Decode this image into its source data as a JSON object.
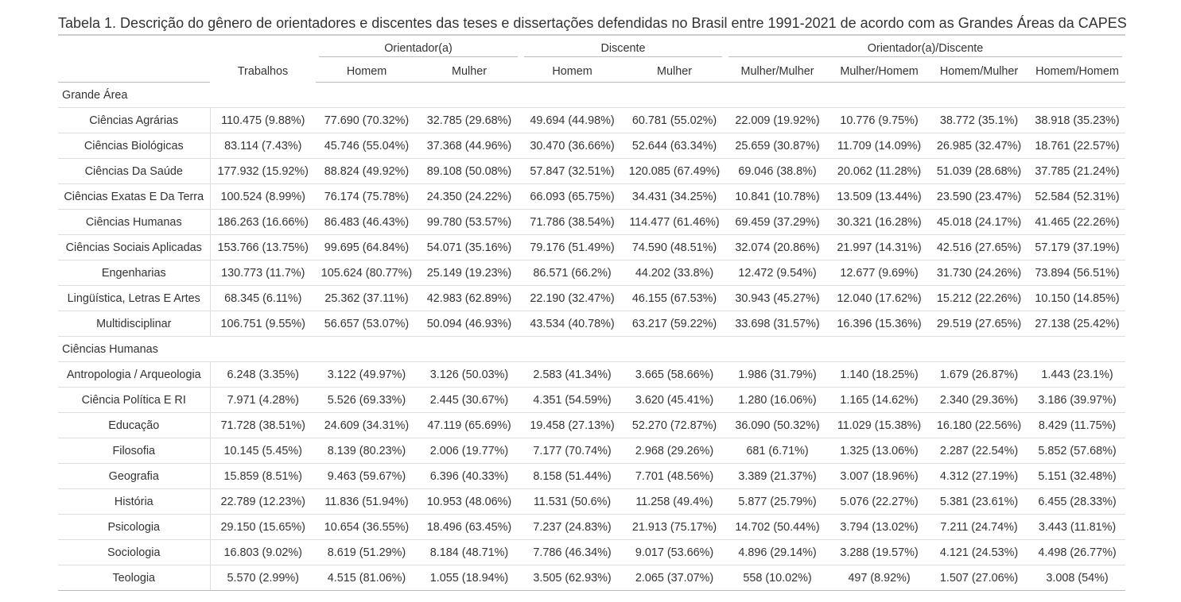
{
  "caption": "Tabela 1. Descrição do gênero de orientadores e discentes das teses e dissertações defendidas no Brasil entre 1991-2021 de acordo com as Grandes Áreas da CAPES",
  "header": {
    "groups": {
      "orientador": "Orientador(a)",
      "discente": "Discente",
      "orientador_discente": "Orientador(a)/Discente"
    },
    "columns": [
      "",
      "Trabalhos",
      "Homem",
      "Mulher",
      "Homem",
      "Mulher",
      "Mulher/Mulher",
      "Mulher/Homem",
      "Homem/Mulher",
      "Homem/Homem"
    ]
  },
  "groups": [
    {
      "label": "Grande Área",
      "rows": [
        [
          "Ciências Agrárias",
          "110.475 (9.88%)",
          "77.690 (70.32%)",
          "32.785 (29.68%)",
          "49.694 (44.98%)",
          "60.781 (55.02%)",
          "22.009 (19.92%)",
          "10.776 (9.75%)",
          "38.772 (35.1%)",
          "38.918 (35.23%)"
        ],
        [
          "Ciências Biológicas",
          "83.114 (7.43%)",
          "45.746 (55.04%)",
          "37.368 (44.96%)",
          "30.470 (36.66%)",
          "52.644 (63.34%)",
          "25.659 (30.87%)",
          "11.709 (14.09%)",
          "26.985 (32.47%)",
          "18.761 (22.57%)"
        ],
        [
          "Ciências Da Saúde",
          "177.932 (15.92%)",
          "88.824 (49.92%)",
          "89.108 (50.08%)",
          "57.847 (32.51%)",
          "120.085 (67.49%)",
          "69.046 (38.8%)",
          "20.062 (11.28%)",
          "51.039 (28.68%)",
          "37.785 (21.24%)"
        ],
        [
          "Ciências Exatas E Da Terra",
          "100.524 (8.99%)",
          "76.174 (75.78%)",
          "24.350 (24.22%)",
          "66.093 (65.75%)",
          "34.431 (34.25%)",
          "10.841 (10.78%)",
          "13.509 (13.44%)",
          "23.590 (23.47%)",
          "52.584 (52.31%)"
        ],
        [
          "Ciências Humanas",
          "186.263 (16.66%)",
          "86.483 (46.43%)",
          "99.780 (53.57%)",
          "71.786 (38.54%)",
          "114.477 (61.46%)",
          "69.459 (37.29%)",
          "30.321 (16.28%)",
          "45.018 (24.17%)",
          "41.465 (22.26%)"
        ],
        [
          "Ciências Sociais Aplicadas",
          "153.766 (13.75%)",
          "99.695 (64.84%)",
          "54.071 (35.16%)",
          "79.176 (51.49%)",
          "74.590 (48.51%)",
          "32.074 (20.86%)",
          "21.997 (14.31%)",
          "42.516 (27.65%)",
          "57.179 (37.19%)"
        ],
        [
          "Engenharias",
          "130.773 (11.7%)",
          "105.624 (80.77%)",
          "25.149 (19.23%)",
          "86.571 (66.2%)",
          "44.202 (33.8%)",
          "12.472 (9.54%)",
          "12.677 (9.69%)",
          "31.730 (24.26%)",
          "73.894 (56.51%)"
        ],
        [
          "Lingüística, Letras E Artes",
          "68.345 (6.11%)",
          "25.362 (37.11%)",
          "42.983 (62.89%)",
          "22.190 (32.47%)",
          "46.155 (67.53%)",
          "30.943 (45.27%)",
          "12.040 (17.62%)",
          "15.212 (22.26%)",
          "10.150 (14.85%)"
        ],
        [
          "Multidisciplinar",
          "106.751 (9.55%)",
          "56.657 (53.07%)",
          "50.094 (46.93%)",
          "43.534 (40.78%)",
          "63.217 (59.22%)",
          "33.698 (31.57%)",
          "16.396 (15.36%)",
          "29.519 (27.65%)",
          "27.138 (25.42%)"
        ]
      ]
    },
    {
      "label": "Ciências Humanas",
      "rows": [
        [
          "Antropologia / Arqueologia",
          "6.248 (3.35%)",
          "3.122 (49.97%)",
          "3.126 (50.03%)",
          "2.583 (41.34%)",
          "3.665 (58.66%)",
          "1.986 (31.79%)",
          "1.140 (18.25%)",
          "1.679 (26.87%)",
          "1.443 (23.1%)"
        ],
        [
          "Ciência Política E RI",
          "7.971 (4.28%)",
          "5.526 (69.33%)",
          "2.445 (30.67%)",
          "4.351 (54.59%)",
          "3.620 (45.41%)",
          "1.280 (16.06%)",
          "1.165 (14.62%)",
          "2.340 (29.36%)",
          "3.186 (39.97%)"
        ],
        [
          "Educação",
          "71.728 (38.51%)",
          "24.609 (34.31%)",
          "47.119 (65.69%)",
          "19.458 (27.13%)",
          "52.270 (72.87%)",
          "36.090 (50.32%)",
          "11.029 (15.38%)",
          "16.180 (22.56%)",
          "8.429 (11.75%)"
        ],
        [
          "Filosofia",
          "10.145 (5.45%)",
          "8.139 (80.23%)",
          "2.006 (19.77%)",
          "7.177 (70.74%)",
          "2.968 (29.26%)",
          "681 (6.71%)",
          "1.325 (13.06%)",
          "2.287 (22.54%)",
          "5.852 (57.68%)"
        ],
        [
          "Geografia",
          "15.859 (8.51%)",
          "9.463 (59.67%)",
          "6.396 (40.33%)",
          "8.158 (51.44%)",
          "7.701 (48.56%)",
          "3.389 (21.37%)",
          "3.007 (18.96%)",
          "4.312 (27.19%)",
          "5.151 (32.48%)"
        ],
        [
          "História",
          "22.789 (12.23%)",
          "11.836 (51.94%)",
          "10.953 (48.06%)",
          "11.531 (50.6%)",
          "11.258 (49.4%)",
          "5.877 (25.79%)",
          "5.076 (22.27%)",
          "5.381 (23.61%)",
          "6.455 (28.33%)"
        ],
        [
          "Psicologia",
          "29.150 (15.65%)",
          "10.654 (36.55%)",
          "18.496 (63.45%)",
          "7.237 (24.83%)",
          "21.913 (75.17%)",
          "14.702 (50.44%)",
          "3.794 (13.02%)",
          "7.211 (24.74%)",
          "3.443 (11.81%)"
        ],
        [
          "Sociologia",
          "16.803 (9.02%)",
          "8.619 (51.29%)",
          "8.184 (48.71%)",
          "7.786 (46.34%)",
          "9.017 (53.66%)",
          "4.896 (29.14%)",
          "3.288 (19.57%)",
          "4.121 (24.53%)",
          "4.498 (26.77%)"
        ],
        [
          "Teologia",
          "5.570 (2.99%)",
          "4.515 (81.06%)",
          "1.055 (18.94%)",
          "3.505 (62.93%)",
          "2.065 (37.07%)",
          "558 (10.02%)",
          "497 (8.92%)",
          "1.507 (27.06%)",
          "3.008 (54%)"
        ]
      ]
    }
  ]
}
